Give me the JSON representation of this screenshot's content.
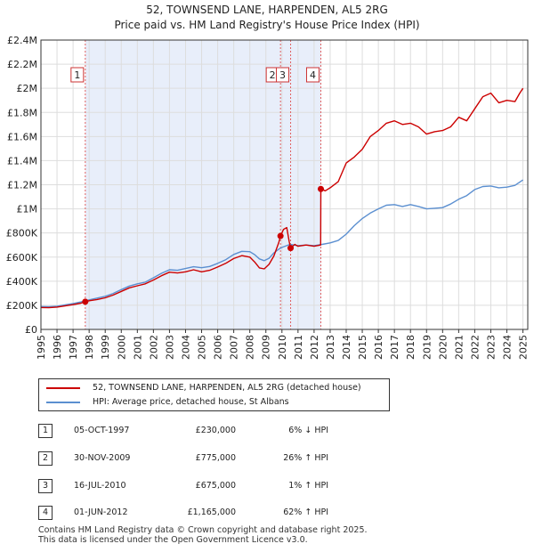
{
  "chart_data": {
    "type": "line",
    "title": "52, TOWNSEND LANE, HARPENDEN, AL5 2RG",
    "subtitle": "Price paid vs. HM Land Registry's House Price Index (HPI)",
    "xlabel": "",
    "ylabel": "",
    "xlim": [
      1995,
      2025.3
    ],
    "ylim": [
      0,
      2400000
    ],
    "y_ticks": [
      0,
      200000,
      400000,
      600000,
      800000,
      1000000,
      1200000,
      1400000,
      1600000,
      1800000,
      2000000,
      2200000,
      2400000
    ],
    "y_tick_labels": [
      "£0",
      "£200K",
      "£400K",
      "£600K",
      "£800K",
      "£1M",
      "£1.2M",
      "£1.4M",
      "£1.6M",
      "£1.8M",
      "£2M",
      "£2.2M",
      "£2.4M"
    ],
    "x_ticks": [
      1995,
      1996,
      1997,
      1998,
      1999,
      2000,
      2001,
      2002,
      2003,
      2004,
      2005,
      2006,
      2007,
      2008,
      2009,
      2010,
      2011,
      2012,
      2013,
      2014,
      2015,
      2016,
      2017,
      2018,
      2019,
      2020,
      2021,
      2022,
      2023,
      2024,
      2025
    ],
    "x_tick_labels": [
      "1995",
      "1996",
      "1997",
      "1998",
      "1999",
      "2000",
      "2001",
      "2002",
      "2003",
      "2004",
      "2005",
      "2006",
      "2007",
      "2008",
      "2009",
      "2010",
      "2011",
      "2012",
      "2013",
      "2014",
      "2015",
      "2016",
      "2017",
      "2018",
      "2019",
      "2020",
      "2021",
      "2022",
      "2023",
      "2024",
      "2025"
    ],
    "grid": true,
    "shaded_ranges": [
      [
        1997.76,
        2012.42
      ]
    ],
    "series": [
      {
        "name": "52, TOWNSEND LANE, HARPENDEN, AL5 2RG (detached house)",
        "color": "#cc0000",
        "x": [
          1995.0,
          1995.5,
          1996.0,
          1996.5,
          1997.0,
          1997.5,
          1997.76,
          1998.0,
          1998.5,
          1999.0,
          1999.5,
          2000.0,
          2000.5,
          2001.0,
          2001.5,
          2002.0,
          2002.5,
          2003.0,
          2003.5,
          2004.0,
          2004.5,
          2005.0,
          2005.5,
          2006.0,
          2006.5,
          2007.0,
          2007.5,
          2008.0,
          2008.3,
          2008.6,
          2008.9,
          2009.2,
          2009.5,
          2009.8,
          2009.91,
          2010.1,
          2010.3,
          2010.45,
          2010.54,
          2010.8,
          2011.0,
          2011.5,
          2012.0,
          2012.41,
          2012.42,
          2012.7,
          2013.0,
          2013.5,
          2014.0,
          2014.5,
          2015.0,
          2015.5,
          2016.0,
          2016.5,
          2017.0,
          2017.5,
          2018.0,
          2018.5,
          2019.0,
          2019.5,
          2020.0,
          2020.5,
          2021.0,
          2021.5,
          2022.0,
          2022.5,
          2023.0,
          2023.5,
          2024.0,
          2024.5,
          2024.8,
          2025.0
        ],
        "values": [
          182000,
          180000,
          185000,
          195000,
          205000,
          218000,
          230000,
          238000,
          248000,
          262000,
          285000,
          315000,
          345000,
          362000,
          378000,
          410000,
          445000,
          475000,
          468000,
          478000,
          495000,
          478000,
          490000,
          518000,
          548000,
          588000,
          612000,
          600000,
          560000,
          510000,
          502000,
          540000,
          610000,
          720000,
          775000,
          830000,
          845000,
          730000,
          675000,
          705000,
          690000,
          700000,
          690000,
          700000,
          1165000,
          1150000,
          1175000,
          1225000,
          1380000,
          1430000,
          1495000,
          1600000,
          1650000,
          1710000,
          1730000,
          1700000,
          1710000,
          1680000,
          1620000,
          1640000,
          1650000,
          1680000,
          1760000,
          1730000,
          1830000,
          1930000,
          1960000,
          1880000,
          1900000,
          1890000,
          1960000,
          2000000
        ]
      },
      {
        "name": "HPI: Average price, detached house, St Albans",
        "color": "#5b8fd0",
        "x": [
          1995.0,
          1995.5,
          1996.0,
          1996.5,
          1997.0,
          1997.5,
          1998.0,
          1998.5,
          1999.0,
          1999.5,
          2000.0,
          2000.5,
          2001.0,
          2001.5,
          2002.0,
          2002.5,
          2003.0,
          2003.5,
          2004.0,
          2004.5,
          2005.0,
          2005.5,
          2006.0,
          2006.5,
          2007.0,
          2007.5,
          2008.0,
          2008.3,
          2008.6,
          2008.9,
          2009.2,
          2009.5,
          2009.8,
          2010.0,
          2010.5,
          2011.0,
          2011.5,
          2012.0,
          2012.5,
          2013.0,
          2013.5,
          2014.0,
          2014.5,
          2015.0,
          2015.5,
          2016.0,
          2016.5,
          2017.0,
          2017.5,
          2018.0,
          2018.5,
          2019.0,
          2019.5,
          2020.0,
          2020.5,
          2021.0,
          2021.5,
          2022.0,
          2022.5,
          2023.0,
          2023.5,
          2024.0,
          2024.5,
          2025.0
        ],
        "values": [
          190000,
          188000,
          193000,
          203000,
          215000,
          228000,
          245000,
          260000,
          275000,
          298000,
          330000,
          360000,
          378000,
          392000,
          428000,
          465000,
          495000,
          490000,
          505000,
          520000,
          512000,
          522000,
          548000,
          578000,
          622000,
          648000,
          645000,
          620000,
          585000,
          570000,
          590000,
          635000,
          665000,
          680000,
          705000,
          695000,
          700000,
          695000,
          705000,
          718000,
          738000,
          790000,
          860000,
          920000,
          965000,
          1000000,
          1030000,
          1035000,
          1020000,
          1035000,
          1020000,
          1000000,
          1005000,
          1010000,
          1040000,
          1080000,
          1110000,
          1160000,
          1185000,
          1190000,
          1175000,
          1180000,
          1195000,
          1240000
        ]
      }
    ],
    "transactions": [
      {
        "label": "1",
        "x": 1997.76,
        "value": 230000,
        "date": "05-OCT-1997",
        "price": "£230,000",
        "delta": "6% ↓ HPI"
      },
      {
        "label": "2",
        "x": 2009.91,
        "value": 775000,
        "date": "30-NOV-2009",
        "price": "£775,000",
        "delta": "26% ↑ HPI"
      },
      {
        "label": "3",
        "x": 2010.54,
        "value": 675000,
        "date": "16-JUL-2010",
        "price": "£675,000",
        "delta": "1% ↑ HPI"
      },
      {
        "label": "4",
        "x": 2012.42,
        "value": 1165000,
        "date": "01-JUN-2012",
        "price": "£1,165,000",
        "delta": "62% ↑ HPI"
      }
    ],
    "legend_position": "bottom"
  },
  "footer": {
    "line1": "Contains HM Land Registry data © Crown copyright and database right 2025.",
    "line2": "This data is licensed under the Open Government Licence v3.0."
  }
}
